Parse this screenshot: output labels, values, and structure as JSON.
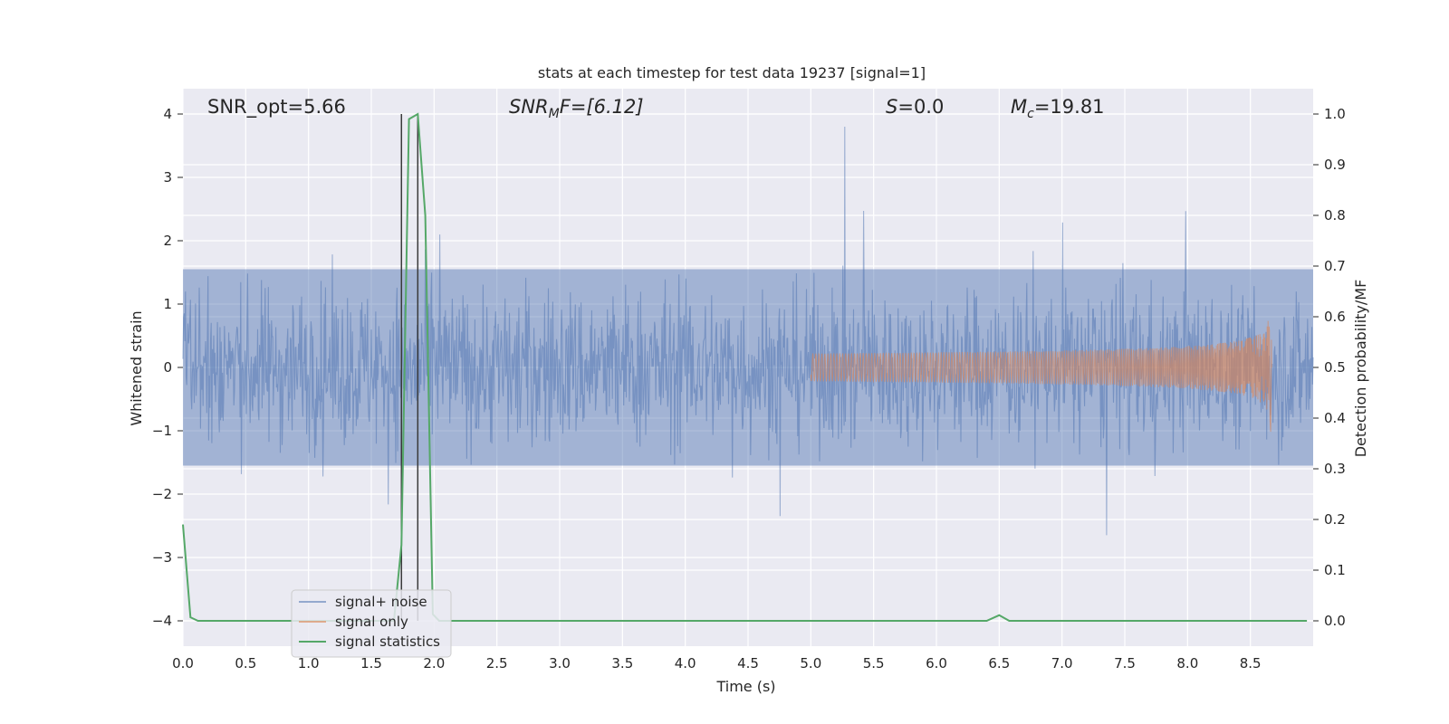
{
  "chart_data": {
    "type": "line",
    "title": "stats at each timestep for test data 19237 [signal=1]",
    "xlabel": "Time (s)",
    "ylabel": "Whitened strain",
    "ylabel_right": "Detection probability/MF",
    "xlim": [
      0.0,
      9.0
    ],
    "ylim": [
      -4.4,
      4.4
    ],
    "ylim_right": [
      -0.05,
      1.05
    ],
    "x_ticks": [
      "0.0",
      "0.5",
      "1.0",
      "1.5",
      "2.0",
      "2.5",
      "3.0",
      "3.5",
      "4.0",
      "4.5",
      "5.0",
      "5.5",
      "6.0",
      "6.5",
      "7.0",
      "7.5",
      "8.0",
      "8.5"
    ],
    "y_ticks": [
      "4",
      "3",
      "2",
      "1",
      "0",
      "−1",
      "−2",
      "−3",
      "−4"
    ],
    "y_right_ticks": [
      "1.0",
      "0.9",
      "0.8",
      "0.7",
      "0.6",
      "0.5",
      "0.4",
      "0.3",
      "0.2",
      "0.1",
      "0.0"
    ],
    "grid": true,
    "legend_placement": "lower-left",
    "colors": {
      "noise": "#4c72b0",
      "signal": "#dd8452",
      "stats": "#55a868",
      "plot_bg": "#eaeaf2",
      "marker_line": "#3a3a3a"
    },
    "annotations": {
      "snr_opt": "SNR_opt=5.66",
      "snr_mf_prefix": "SNR",
      "snr_mf_sub": "M",
      "snr_mf_suffix": "F=[6.12]",
      "s_prefix": "S",
      "s_suffix": "=0.0",
      "mc_prefix": "M",
      "mc_sub": "c",
      "mc_suffix": "=19.81"
    },
    "series": [
      {
        "name": "signal+ noise",
        "description_values": "whitened strain noise, amplitude roughly within -2.5..2.5 with spikes to ~3.8"
      },
      {
        "name": "signal only",
        "chirp_start": 5.0,
        "chirp_end": 8.67,
        "peak_amplitude": 1.15
      },
      {
        "name": "signal statistics",
        "x": [
          0.0,
          0.06,
          0.12,
          0.5,
          1.0,
          1.5,
          1.68,
          1.74,
          1.8,
          1.87,
          1.93,
          1.99,
          2.04,
          2.5,
          3.0,
          3.5,
          4.0,
          4.5,
          5.0,
          5.5,
          6.0,
          6.4,
          6.5,
          6.58,
          7.0,
          7.5,
          8.0,
          8.5,
          8.95
        ],
        "values": [
          0.19,
          0.007,
          0.0,
          0.0,
          0.0,
          0.0,
          0.0,
          0.15,
          0.99,
          1.0,
          0.8,
          0.013,
          0.0,
          0.0,
          0.0,
          0.0,
          0.0,
          0.0,
          0.0,
          0.0,
          0.0,
          0.0,
          0.011,
          0.0,
          0.0,
          0.0,
          0.0,
          0.0,
          0.0
        ]
      }
    ],
    "vertical_markers": [
      1.74,
      1.87
    ],
    "legend": [
      "signal+ noise",
      "signal only",
      "signal statistics"
    ]
  }
}
